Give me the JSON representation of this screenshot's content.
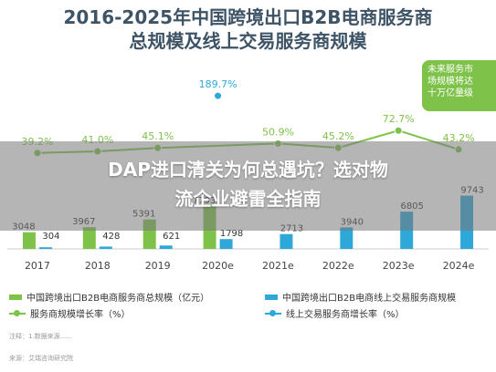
{
  "title_lines": [
    "2016-2025年中国跨境出口B2B电商服务商",
    "总规模及线上交易服务商规模"
  ],
  "callout": {
    "lines": [
      "未来服务市",
      "场规模将达",
      "十万亿量级"
    ]
  },
  "overlay": {
    "lines": [
      "DAP进口清关为何总遇坑？选对物",
      "流企业避雷全指南"
    ]
  },
  "colors": {
    "bar_total": "#7ec24a",
    "bar_online": "#2ea7d9",
    "line_total": "#7ec24a",
    "line_online": "#2ea7d9",
    "title": "#3e5466"
  },
  "chart_data": {
    "type": "bar",
    "categories": [
      "2017",
      "2018",
      "2019",
      "2020e",
      "2021e",
      "2022e",
      "2023e",
      "2024e"
    ],
    "series": [
      {
        "name": "中国跨境出口B2B电商服务商总规模（亿元）",
        "type": "bar",
        "values": [
          3048,
          3967,
          5391,
          7793,
          null,
          null,
          null,
          null
        ],
        "labels": [
          "3048",
          "3967",
          "5391",
          "7793",
          "",
          "",
          "",
          ""
        ]
      },
      {
        "name": "中国跨境出口B2B电商线上交易服务商规模",
        "type": "bar",
        "values": [
          304,
          428,
          621,
          1798,
          2713,
          3940,
          6805,
          9743
        ],
        "labels": [
          "304",
          "428",
          "621",
          "1798",
          "2713",
          "3940",
          "6805",
          "9743"
        ]
      },
      {
        "name": "服务商总规模增长率（%）",
        "type": "line",
        "values": [
          39.2,
          41.0,
          45.1,
          null,
          50.9,
          45.2,
          72.7,
          43.2
        ],
        "labels": [
          "39.2%",
          "41.0%",
          "45.1%",
          "",
          "50.9%",
          "45.2%",
          "72.7%",
          "43.2%"
        ]
      },
      {
        "name": "线上交易服务商增长率（%）",
        "type": "line",
        "values": [
          null,
          null,
          null,
          189.7,
          null,
          null,
          null,
          null
        ],
        "labels": [
          "",
          "",
          "",
          "189.7%",
          "",
          "",
          "",
          ""
        ]
      }
    ]
  },
  "legend": [
    {
      "label": "中国跨境出口B2B电商服务商总规模（亿元）",
      "kind": "bar",
      "color": "#7ec24a"
    },
    {
      "label": "中国跨境出口B2B电商线上交易服务商规模",
      "kind": "bar",
      "color": "#2ea7d9"
    },
    {
      "label": "服务商规模增长率（%）",
      "kind": "line",
      "color": "#7ec24a"
    },
    {
      "label": "线上交易服务商增长率（%）",
      "kind": "line",
      "color": "#2ea7d9"
    }
  ],
  "footnote": "注释：1.数据来源......",
  "footnote2": "来源：艾瑞咨询研究院"
}
